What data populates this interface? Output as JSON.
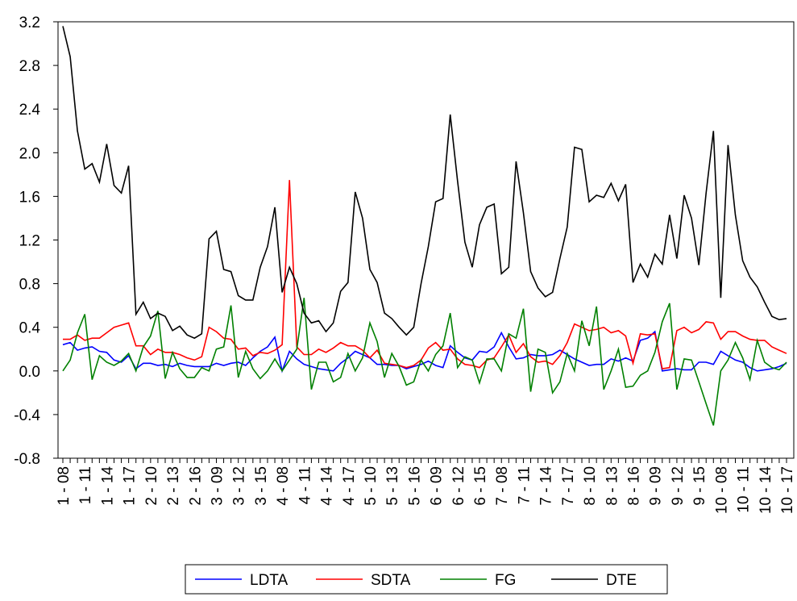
{
  "chart_data": {
    "type": "line",
    "categories": [
      "1 - 08",
      null,
      null,
      "1 - 11",
      null,
      null,
      "1 - 14",
      null,
      null,
      "1 - 17",
      null,
      null,
      "2 - 10",
      null,
      null,
      "2 - 13",
      null,
      null,
      "2 - 16",
      null,
      null,
      "3 - 09",
      null,
      null,
      "3 - 12",
      null,
      null,
      "3 - 15",
      null,
      null,
      "4 - 08",
      null,
      null,
      "4 - 11",
      null,
      null,
      "4 - 14",
      null,
      null,
      "4 - 17",
      null,
      null,
      "5 - 10",
      null,
      null,
      "5 - 13",
      null,
      null,
      "5 - 16",
      null,
      null,
      "6 - 09",
      null,
      null,
      "6 - 12",
      null,
      null,
      "6 - 15",
      null,
      null,
      "7 - 08",
      null,
      null,
      "7 - 11",
      null,
      null,
      "7 - 14",
      null,
      null,
      "7 - 17",
      null,
      null,
      "8 - 10",
      null,
      null,
      "8 - 13",
      null,
      null,
      "8 - 16",
      null,
      null,
      "9 - 09",
      null,
      null,
      "9 - 12",
      null,
      null,
      "9 - 15",
      null,
      null,
      "10 - 08",
      null,
      null,
      "10 - 11",
      null,
      null,
      "10 - 14",
      null,
      null,
      "10 - 17"
    ],
    "series": [
      {
        "name": "LDTA",
        "color": "#0000ff",
        "values": [
          0.24,
          0.26,
          0.19,
          0.21,
          0.22,
          0.18,
          0.17,
          0.1,
          0.08,
          0.14,
          0.02,
          0.07,
          0.07,
          0.05,
          0.06,
          0.04,
          0.07,
          0.05,
          0.04,
          0.04,
          0.04,
          0.07,
          0.05,
          0.07,
          0.08,
          0.05,
          0.12,
          0.18,
          0.22,
          0.31,
          0.0,
          0.18,
          0.11,
          0.06,
          0.04,
          0.02,
          0.01,
          0.0,
          0.07,
          0.12,
          0.18,
          0.15,
          0.12,
          0.06,
          0.06,
          0.05,
          0.05,
          0.02,
          0.04,
          0.06,
          0.09,
          0.05,
          0.03,
          0.23,
          0.17,
          0.12,
          0.1,
          0.18,
          0.17,
          0.22,
          0.35,
          0.22,
          0.11,
          0.12,
          0.15,
          0.14,
          0.14,
          0.15,
          0.19,
          0.15,
          0.11,
          0.08,
          0.05,
          0.06,
          0.06,
          0.11,
          0.09,
          0.12,
          0.09,
          0.28,
          0.3,
          0.36,
          0.0,
          0.01,
          0.02,
          0.01,
          0.01,
          0.08,
          0.08,
          0.06,
          0.18,
          0.14,
          0.1,
          0.08,
          0.03,
          0.0,
          0.01,
          0.02,
          0.04,
          0.07
        ]
      },
      {
        "name": "SDTA",
        "color": "#ff0000",
        "values": [
          0.29,
          0.29,
          0.33,
          0.28,
          0.3,
          0.3,
          0.35,
          0.4,
          0.42,
          0.44,
          0.23,
          0.23,
          0.15,
          0.2,
          0.17,
          0.17,
          0.15,
          0.12,
          0.1,
          0.13,
          0.4,
          0.36,
          0.3,
          0.29,
          0.2,
          0.21,
          0.14,
          0.17,
          0.16,
          0.19,
          0.24,
          1.75,
          0.22,
          0.15,
          0.15,
          0.2,
          0.17,
          0.21,
          0.26,
          0.23,
          0.23,
          0.19,
          0.12,
          0.19,
          0.07,
          0.06,
          0.05,
          0.03,
          0.05,
          0.1,
          0.21,
          0.26,
          0.19,
          0.2,
          0.11,
          0.06,
          0.05,
          0.03,
          0.1,
          0.12,
          0.22,
          0.33,
          0.17,
          0.25,
          0.13,
          0.08,
          0.09,
          0.06,
          0.14,
          0.26,
          0.43,
          0.4,
          0.37,
          0.38,
          0.4,
          0.35,
          0.37,
          0.32,
          0.07,
          0.34,
          0.33,
          0.34,
          0.02,
          0.03,
          0.37,
          0.4,
          0.35,
          0.38,
          0.45,
          0.44,
          0.29,
          0.36,
          0.36,
          0.32,
          0.29,
          0.28,
          0.28,
          0.22,
          0.19,
          0.16
        ]
      },
      {
        "name": "FG",
        "color": "#008000",
        "values": [
          0.0,
          0.1,
          0.35,
          0.52,
          -0.08,
          0.14,
          0.08,
          0.05,
          0.09,
          0.16,
          0.0,
          0.22,
          0.32,
          0.55,
          -0.07,
          0.17,
          0.02,
          -0.06,
          -0.06,
          0.03,
          0.0,
          0.2,
          0.22,
          0.6,
          -0.06,
          0.18,
          0.02,
          -0.07,
          0.0,
          0.11,
          0.0,
          0.1,
          0.2,
          0.67,
          -0.17,
          0.08,
          0.08,
          -0.1,
          -0.06,
          0.16,
          0.0,
          0.12,
          0.44,
          0.27,
          -0.06,
          0.16,
          0.04,
          -0.13,
          -0.1,
          0.1,
          0.0,
          0.15,
          0.23,
          0.53,
          0.03,
          0.13,
          0.1,
          -0.11,
          0.11,
          0.11,
          0.0,
          0.34,
          0.3,
          0.57,
          -0.19,
          0.2,
          0.17,
          -0.2,
          -0.1,
          0.16,
          0.0,
          0.46,
          0.23,
          0.59,
          -0.17,
          0.0,
          0.2,
          -0.15,
          -0.14,
          -0.04,
          0.0,
          0.17,
          0.45,
          0.62,
          -0.17,
          0.11,
          0.1,
          -0.1,
          -0.3,
          -0.5,
          0.0,
          0.1,
          0.26,
          0.12,
          -0.08,
          0.28,
          0.08,
          0.03,
          0.01,
          0.08
        ]
      },
      {
        "name": "DTE",
        "color": "#000000",
        "values": [
          3.16,
          2.88,
          2.2,
          1.85,
          1.9,
          1.73,
          2.08,
          1.7,
          1.63,
          1.88,
          0.52,
          0.63,
          0.48,
          0.53,
          0.5,
          0.37,
          0.41,
          0.33,
          0.3,
          0.34,
          1.21,
          1.28,
          0.93,
          0.91,
          0.69,
          0.65,
          0.65,
          0.95,
          1.14,
          1.5,
          0.72,
          0.95,
          0.8,
          0.53,
          0.44,
          0.46,
          0.36,
          0.44,
          0.73,
          0.81,
          1.64,
          1.4,
          0.93,
          0.81,
          0.53,
          0.48,
          0.4,
          0.33,
          0.4,
          0.8,
          1.14,
          1.55,
          1.58,
          2.35,
          1.74,
          1.18,
          0.95,
          1.34,
          1.5,
          1.53,
          0.89,
          0.95,
          1.92,
          1.45,
          0.91,
          0.76,
          0.68,
          0.72,
          1.03,
          1.32,
          2.05,
          2.03,
          1.55,
          1.61,
          1.59,
          1.72,
          1.56,
          1.71,
          0.81,
          0.98,
          0.86,
          1.07,
          0.98,
          1.43,
          1.03,
          1.61,
          1.4,
          0.97,
          1.63,
          2.2,
          0.67,
          2.07,
          1.43,
          1.01,
          0.86,
          0.77,
          0.63,
          0.5,
          0.47,
          0.48
        ]
      }
    ],
    "ylim": [
      -0.8,
      3.2
    ],
    "yticks": [
      -0.8,
      -0.4,
      {
        "value": 0,
        "label": "0.0"
      },
      0.4,
      0.8,
      1.2,
      1.6,
      {
        "value": 2,
        "label": "2.0"
      },
      2.4,
      2.8,
      3.2
    ],
    "legend": "bottom"
  }
}
